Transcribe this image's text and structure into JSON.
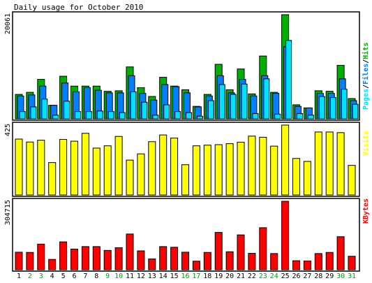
{
  "chart_data": {
    "type": "bar",
    "title": "Daily usage for October 2010",
    "days": [
      "1",
      "2",
      "3",
      "4",
      "5",
      "6",
      "7",
      "8",
      "9",
      "10",
      "11",
      "12",
      "13",
      "14",
      "15",
      "16",
      "17",
      "18",
      "19",
      "20",
      "21",
      "22",
      "23",
      "24",
      "25",
      "26",
      "27",
      "28",
      "29",
      "30",
      "31"
    ],
    "weekend_days": [
      "2",
      "3",
      "9",
      "10",
      "16",
      "17",
      "23",
      "24",
      "30",
      "31"
    ],
    "colors": {
      "hits": "#00b000",
      "files": "#0080ff",
      "pages": "#00e0ff",
      "visits": "#ffff00",
      "kbytes": "#ff0000",
      "weekend_label": "#00a000",
      "weekday_label": "#000000",
      "panel_border": "#000000"
    },
    "panels": [
      {
        "key": "usage",
        "max_label": "20061",
        "ymax": 20061,
        "legend": [
          {
            "text": "Pages",
            "color": "#00e0ff"
          },
          {
            "text": "/",
            "color": "#000000"
          },
          {
            "text": "Files",
            "color": "#0080ff"
          },
          {
            "text": "/",
            "color": "#000000"
          },
          {
            "text": "Hits",
            "color": "#00b000"
          }
        ],
        "series": [
          {
            "name": "Hits",
            "color": "#00b000",
            "values": [
              4700,
              5100,
              7600,
              2600,
              8200,
              6300,
              6300,
              6300,
              5300,
              5400,
              10000,
              6000,
              4300,
              8000,
              6300,
              5600,
              2400,
              4700,
              10500,
              5600,
              9600,
              4800,
              12100,
              5100,
              20061,
              2700,
              2100,
              5400,
              5300,
              10300,
              3900
            ]
          },
          {
            "name": "Files",
            "color": "#0080ff",
            "values": [
              4400,
              4600,
              6300,
              2600,
              6900,
              5200,
              6000,
              5500,
              5000,
              5000,
              8300,
              4900,
              3600,
              6600,
              6200,
              5000,
              2300,
              4400,
              8300,
              5000,
              7600,
              4400,
              8300,
              4900,
              13900,
              2400,
              2100,
              4900,
              4900,
              7700,
              3500
            ]
          },
          {
            "name": "Pages",
            "color": "#00e0ff",
            "values": [
              1400,
              2300,
              3800,
              700,
              3400,
              1400,
              1400,
              1500,
              1400,
              1200,
              5200,
              3200,
              700,
              2700,
              1400,
              1200,
              500,
              3500,
              6600,
              4700,
              6700,
              1000,
              7700,
              900,
              15100,
              1000,
              700,
              4300,
              4100,
              5700,
              2800
            ]
          }
        ]
      },
      {
        "key": "visits",
        "max_label": "425",
        "ymax": 425,
        "legend": [
          {
            "text": "Visits",
            "color": "#ffff00"
          }
        ],
        "series": [
          {
            "name": "Visits",
            "color": "#ffff00",
            "values": [
              340,
              322,
              333,
              197,
              338,
              327,
              375,
              285,
              299,
              356,
              212,
              250,
              324,
              365,
              346,
              184,
              299,
              303,
              306,
              312,
              321,
              358,
              351,
              297,
              425,
              222,
              204,
              383,
              383,
              379,
              180
            ]
          }
        ]
      },
      {
        "key": "kbytes",
        "max_label": "304715",
        "ymax": 304715,
        "legend": [
          {
            "text": "KBytes",
            "color": "#ff0000"
          }
        ],
        "series": [
          {
            "name": "KBytes",
            "color": "#ff0000",
            "values": [
              78000,
              77000,
              114000,
              46000,
              124000,
              92000,
              103000,
              103000,
              86000,
              98000,
              159000,
              84000,
              48000,
              103000,
              100000,
              78000,
              38000,
              77000,
              166000,
              80000,
              155000,
              73000,
              187000,
              72000,
              304715,
              40000,
              39000,
              72000,
              77000,
              147000,
              60000
            ]
          }
        ]
      }
    ]
  }
}
